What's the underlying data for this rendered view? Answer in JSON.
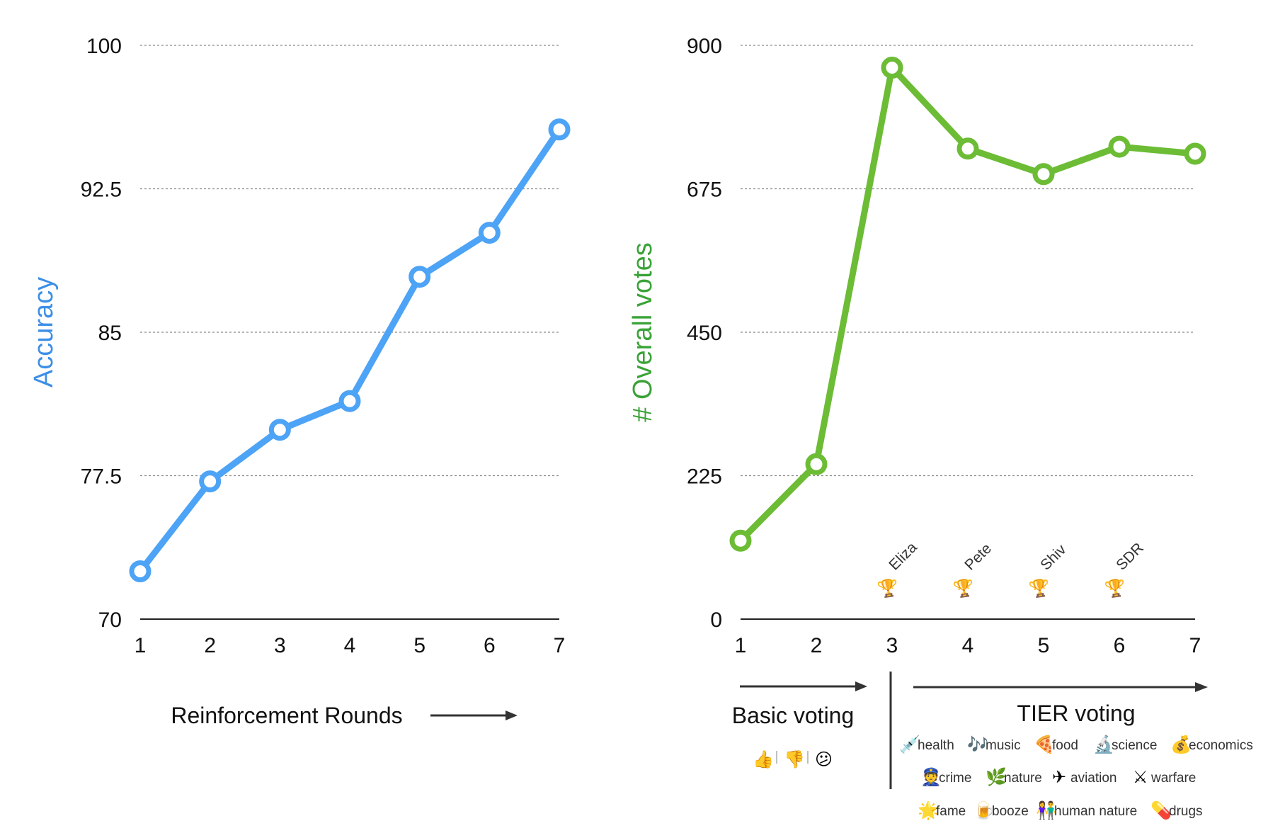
{
  "chart_data": [
    {
      "type": "line",
      "x": [
        1,
        2,
        3,
        4,
        5,
        6,
        7
      ],
      "series": [
        {
          "values": [
            72.5,
            77.2,
            79.9,
            81.4,
            87.9,
            90.2,
            95.6
          ],
          "color": "#4da3f5"
        }
      ],
      "ylabel": "Accuracy",
      "ylabel_color": "#3d8fe6",
      "xlabel": "Reinforcement Rounds",
      "ylim": [
        70,
        100
      ],
      "yticks": [
        "70",
        "77.5",
        "85",
        "92.5",
        "100"
      ],
      "xticks": [
        "1",
        "2",
        "3",
        "4",
        "5",
        "6",
        "7"
      ],
      "grid": true,
      "grid_style": "dotted"
    },
    {
      "type": "line",
      "x": [
        1,
        2,
        3,
        4,
        5,
        6,
        7
      ],
      "series": [
        {
          "values": [
            123,
            243,
            865,
            738,
            698,
            741,
            730
          ],
          "color": "#6cbc35"
        }
      ],
      "ylabel": "# Overall votes",
      "ylabel_color": "#3aa338",
      "ylim": [
        0,
        900
      ],
      "yticks": [
        "0",
        "225",
        "450",
        "675",
        "900"
      ],
      "xticks": [
        "1",
        "2",
        "3",
        "4",
        "5",
        "6",
        "7"
      ],
      "grid": true,
      "grid_style": "dotted",
      "annotations": {
        "trophies": [
          {
            "x": 3,
            "label": "Eliza"
          },
          {
            "x": 4,
            "label": "Pete"
          },
          {
            "x": 5,
            "label": "Shiv"
          },
          {
            "x": 6,
            "label": "SDR"
          }
        ],
        "phases": [
          {
            "label": "Basic voting",
            "x_range": [
              1,
              2
            ],
            "icons": [
              "thumbs-up",
              "thumbs-down",
              "confused-face"
            ]
          },
          {
            "label": "TIER voting",
            "x_range": [
              3,
              7
            ],
            "categories": [
              {
                "icon": "syringe",
                "label": "health"
              },
              {
                "icon": "music-notes",
                "label": "music"
              },
              {
                "icon": "pizza",
                "label": "food"
              },
              {
                "icon": "microscope",
                "label": "science"
              },
              {
                "icon": "money-bag",
                "label": "economics"
              },
              {
                "icon": "police-officer",
                "label": "crime"
              },
              {
                "icon": "herb",
                "label": "nature"
              },
              {
                "icon": "airplane",
                "label": "aviation"
              },
              {
                "icon": "crossed-swords",
                "label": "warfare"
              },
              {
                "icon": "sparkle",
                "label": "fame"
              },
              {
                "icon": "beer-mug",
                "label": "booze"
              },
              {
                "icon": "people",
                "label": "human nature"
              },
              {
                "icon": "pill",
                "label": "drugs"
              }
            ]
          }
        ]
      }
    }
  ],
  "icon_glyphs": {
    "thumbs-up": "👍",
    "thumbs-down": "👎",
    "confused-face": "😕",
    "trophy": "🏆",
    "syringe": "💉",
    "music-notes": "🎶",
    "pizza": "🍕",
    "microscope": "🔬",
    "money-bag": "💰",
    "police-officer": "👮",
    "herb": "🌿",
    "airplane": "✈",
    "crossed-swords": "⚔",
    "sparkle": "🌟",
    "beer-mug": "🍺",
    "people": "👫",
    "pill": "💊"
  }
}
